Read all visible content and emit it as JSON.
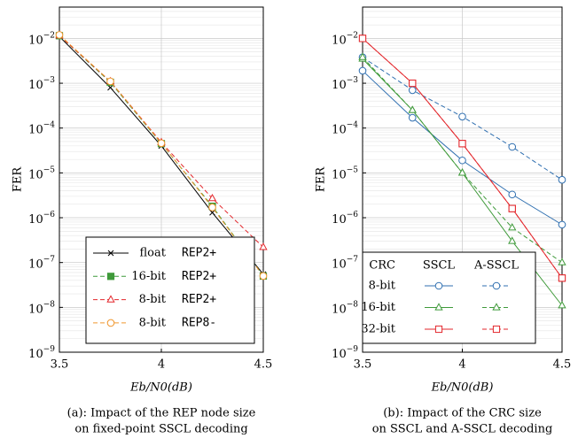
{
  "chart_data": [
    {
      "type": "line",
      "ylog": true,
      "grid": true,
      "minor_grid": true,
      "caption": [
        "(a): Impact of the REP node size",
        "on fixed-point SSCL decoding"
      ],
      "xlabel": "Eb/N0(dB)",
      "ylabel": "FER",
      "x": [
        3.5,
        3.75,
        4,
        4.25,
        4.5
      ],
      "xlim": [
        3.5,
        4.5
      ],
      "xticks": [
        3.5,
        4,
        4.5
      ],
      "ylim": [
        1e-09,
        0.05
      ],
      "yticks": [
        {
          "value": 1e-09,
          "label": "10−9"
        },
        {
          "value": 1e-08,
          "label": "10−8"
        },
        {
          "value": 1e-07,
          "label": "10−7"
        },
        {
          "value": 1e-06,
          "label": "10−6"
        },
        {
          "value": 1e-05,
          "label": "10−5"
        },
        {
          "value": 0.0001,
          "label": "10−4"
        },
        {
          "value": 0.001,
          "label": "10−3"
        },
        {
          "value": 0.01,
          "label": "10−2"
        }
      ],
      "legend": "lower right",
      "series": [
        {
          "name": "float",
          "node": "REP2+",
          "color": "#000000",
          "marker": "x",
          "dashed": false,
          "values": [
            0.011,
            0.0008,
            4e-05,
            1.3e-06,
            5.5e-08
          ]
        },
        {
          "name": "16-bit",
          "node": "REP2+",
          "color": "#3f9a3a",
          "marker": "square-filled",
          "dashed": true,
          "values": [
            0.0115,
            0.00105,
            4.5e-05,
            1.8e-06,
            5e-08
          ]
        },
        {
          "name": "8-bit",
          "node": "REP2+",
          "color": "#e3262b",
          "marker": "triangle",
          "dashed": true,
          "values": [
            0.0115,
            0.0011,
            4.8e-05,
            2.7e-06,
            2.2e-07
          ]
        },
        {
          "name": "8-bit",
          "node": "REP8-",
          "color": "#f0962d",
          "marker": "circle",
          "dashed": true,
          "values": [
            0.012,
            0.0011,
            4.6e-05,
            1.7e-06,
            5e-08
          ]
        }
      ]
    },
    {
      "type": "line",
      "ylog": true,
      "grid": true,
      "minor_grid": true,
      "caption": [
        "(b): Impact of the CRC size",
        "on SSCL and A-SSCL decoding"
      ],
      "xlabel": "Eb/N0(dB)",
      "ylabel": "FER",
      "x": [
        3.5,
        3.75,
        4,
        4.25,
        4.5
      ],
      "xlim": [
        3.5,
        4.5
      ],
      "xticks": [
        3.5,
        4,
        4.5
      ],
      "ylim": [
        1e-09,
        0.05
      ],
      "yticks": [
        {
          "value": 1e-09,
          "label": "10−9"
        },
        {
          "value": 1e-08,
          "label": "10−8"
        },
        {
          "value": 1e-07,
          "label": "10−7"
        },
        {
          "value": 1e-06,
          "label": "10−6"
        },
        {
          "value": 1e-05,
          "label": "10−5"
        },
        {
          "value": 0.0001,
          "label": "10−4"
        },
        {
          "value": 0.001,
          "label": "10−3"
        },
        {
          "value": 0.01,
          "label": "10−2"
        }
      ],
      "legend": "lower left",
      "legend_title": "CRC",
      "columns": [
        "SSCL",
        "A-SSCL"
      ],
      "series": [
        {
          "name": "8-bit",
          "color": "#2f6fb0",
          "marker": "circle",
          "lines": [
            {
              "values": [
                0.0019,
                0.00017,
                1.9e-05,
                3.3e-06,
                7e-07
              ]
            },
            {
              "values": [
                0.0038,
                0.0007,
                0.00018,
                3.8e-05,
                7e-06
              ]
            }
          ]
        },
        {
          "name": "16-bit",
          "color": "#3f9a3a",
          "marker": "triangle",
          "lines": [
            {
              "values": [
                0.0035,
                0.00025,
                1e-05,
                3e-07,
                1.1e-08
              ]
            },
            {
              "values": [
                0.0038,
                0.00025,
                1e-05,
                6e-07,
                1e-07
              ]
            }
          ]
        },
        {
          "name": "32-bit",
          "color": "#e3262b",
          "marker": "square",
          "lines": [
            {
              "values": [
                0.01,
                0.001,
                4.5e-05,
                1.6e-06,
                4.5e-08
              ]
            },
            {
              "values": [
                0.01,
                0.001,
                4.5e-05,
                1.6e-06,
                4.5e-08
              ]
            }
          ]
        }
      ]
    }
  ]
}
